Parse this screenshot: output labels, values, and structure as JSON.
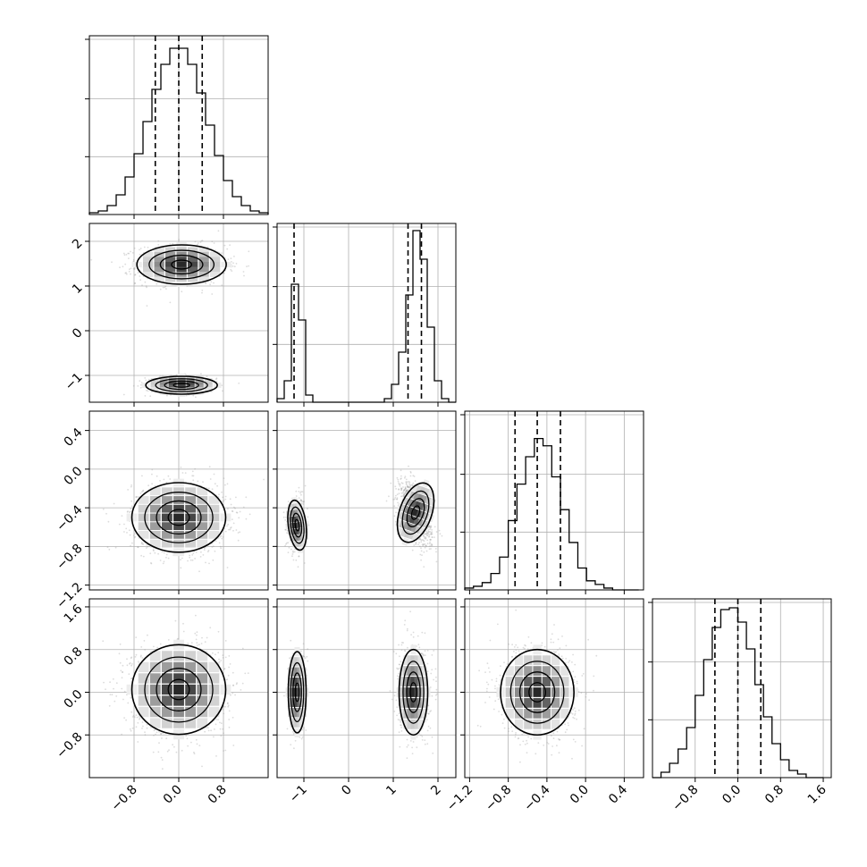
{
  "chart_data": {
    "type": "corner",
    "grid": true,
    "style": {
      "line_color": "#000000",
      "grid_color": "#b0b0b0",
      "point_color": "#9a9a9a"
    },
    "parameters": [
      {
        "range": [
          -1.6,
          1.6
        ],
        "ticks": [
          -0.8,
          0.0,
          0.8
        ],
        "tick_labels": [
          "−0.8",
          "0.0",
          "0.8"
        ]
      },
      {
        "range": [
          -1.6,
          2.4
        ],
        "ticks": [
          -1,
          0,
          1,
          2
        ],
        "tick_labels": [
          "−1",
          "0",
          "1",
          "2"
        ]
      },
      {
        "range": [
          -1.25,
          0.6
        ],
        "ticks": [
          -1.2,
          -0.8,
          -0.4,
          0.0,
          0.4
        ],
        "tick_labels": [
          "−1.2",
          "−0.8",
          "−0.4",
          "0.0",
          "0.4"
        ]
      },
      {
        "range": [
          -1.6,
          1.75
        ],
        "ticks": [
          -0.8,
          0.0,
          0.8,
          1.6
        ],
        "tick_labels": [
          "−0.8",
          "0.0",
          "0.8",
          "1.6"
        ]
      }
    ],
    "histograms": [
      {
        "param": 0,
        "bin_edges": [
          -1.6,
          -1.44,
          -1.28,
          -1.12,
          -0.96,
          -0.8,
          -0.64,
          -0.48,
          -0.32,
          -0.16,
          0.0,
          0.16,
          0.32,
          0.48,
          0.64,
          0.8,
          0.96,
          1.12,
          1.28,
          1.44,
          1.6
        ],
        "counts": [
          0.01,
          0.02,
          0.05,
          0.11,
          0.21,
          0.34,
          0.52,
          0.7,
          0.84,
          0.93,
          0.93,
          0.84,
          0.68,
          0.5,
          0.33,
          0.19,
          0.1,
          0.05,
          0.02,
          0.01
        ],
        "quantiles": [
          -0.42,
          0.0,
          0.42
        ],
        "ymax": 1.0
      },
      {
        "param": 1,
        "bin_edges": [
          -1.6,
          -1.44,
          -1.28,
          -1.12,
          -0.96,
          -0.8,
          -0.64,
          -0.48,
          -0.32,
          -0.16,
          0.0,
          0.16,
          0.32,
          0.48,
          0.64,
          0.8,
          0.96,
          1.12,
          1.28,
          1.44,
          1.6,
          1.76,
          1.92,
          2.08,
          2.24,
          2.4
        ],
        "counts": [
          0.02,
          0.12,
          0.66,
          0.46,
          0.04,
          0.0,
          0.0,
          0.0,
          0.0,
          0.0,
          0.0,
          0.0,
          0.0,
          0.0,
          0.0,
          0.02,
          0.1,
          0.28,
          0.6,
          0.96,
          0.8,
          0.42,
          0.12,
          0.02,
          0.0
        ],
        "quantiles": [
          -1.22,
          1.33,
          1.63
        ],
        "ymax": 1.0
      },
      {
        "param": 2,
        "bin_edges": [
          -1.25,
          -1.16,
          -1.07,
          -0.98,
          -0.89,
          -0.8,
          -0.71,
          -0.62,
          -0.53,
          -0.44,
          -0.35,
          -0.26,
          -0.17,
          -0.08,
          0.01,
          0.1,
          0.19,
          0.28,
          0.37,
          0.46,
          0.55
        ],
        "counts": [
          0.01,
          0.02,
          0.04,
          0.09,
          0.18,
          0.38,
          0.58,
          0.73,
          0.83,
          0.79,
          0.62,
          0.44,
          0.26,
          0.12,
          0.05,
          0.03,
          0.01,
          0.0,
          0.0,
          0.0
        ],
        "quantiles": [
          -0.73,
          -0.5,
          -0.26
        ],
        "ymax": 0.98
      },
      {
        "param": 3,
        "bin_edges": [
          -1.6,
          -1.44,
          -1.28,
          -1.12,
          -0.96,
          -0.8,
          -0.64,
          -0.48,
          -0.32,
          -0.16,
          0.0,
          0.16,
          0.32,
          0.48,
          0.64,
          0.8,
          0.96,
          1.12,
          1.28,
          1.44,
          1.6
        ],
        "counts": [
          0.0,
          0.03,
          0.08,
          0.16,
          0.28,
          0.46,
          0.66,
          0.84,
          0.94,
          0.95,
          0.87,
          0.72,
          0.52,
          0.34,
          0.19,
          0.1,
          0.04,
          0.02,
          0.0,
          0.0
        ],
        "quantiles": [
          -0.43,
          0.0,
          0.43
        ],
        "ymax": 1.0
      }
    ],
    "pairs": [
      {
        "x": 0,
        "y": 1,
        "modes": [
          {
            "cx": 0.05,
            "cy": 1.48,
            "sx": 0.4,
            "sy": 0.22,
            "rho": 0.0,
            "weight": 0.72
          },
          {
            "cx": 0.05,
            "cy": -1.22,
            "sx": 0.32,
            "sy": 0.1,
            "rho": 0.0,
            "weight": 0.28
          }
        ]
      },
      {
        "x": 0,
        "y": 2,
        "modes": [
          {
            "cx": 0.0,
            "cy": -0.5,
            "sx": 0.42,
            "sy": 0.18,
            "rho": 0.0,
            "weight": 1.0
          }
        ]
      },
      {
        "x": 1,
        "y": 2,
        "modes": [
          {
            "cx": -1.15,
            "cy": -0.58,
            "sx": 0.1,
            "sy": 0.13,
            "rho": 0.2,
            "weight": 0.3
          },
          {
            "cx": 1.5,
            "cy": -0.45,
            "sx": 0.18,
            "sy": 0.16,
            "rho": -0.55,
            "weight": 0.7
          }
        ]
      },
      {
        "x": 0,
        "y": 3,
        "modes": [
          {
            "cx": 0.0,
            "cy": 0.05,
            "sx": 0.42,
            "sy": 0.42,
            "rho": 0.0,
            "weight": 1.0
          }
        ]
      },
      {
        "x": 1,
        "y": 3,
        "modes": [
          {
            "cx": -1.15,
            "cy": 0.0,
            "sx": 0.1,
            "sy": 0.38,
            "rho": 0.0,
            "weight": 0.3
          },
          {
            "cx": 1.45,
            "cy": 0.0,
            "sx": 0.16,
            "sy": 0.4,
            "rho": 0.0,
            "weight": 0.7
          }
        ]
      },
      {
        "x": 2,
        "y": 3,
        "modes": [
          {
            "cx": -0.5,
            "cy": 0.0,
            "sx": 0.19,
            "sy": 0.4,
            "rho": 0.0,
            "weight": 1.0
          }
        ]
      }
    ]
  }
}
